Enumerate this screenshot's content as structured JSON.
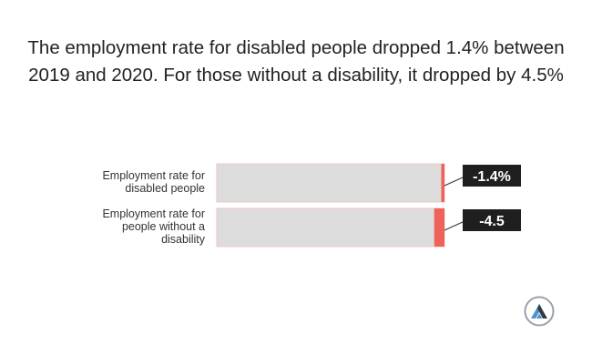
{
  "title": "The employment rate for disabled people dropped 1.4% between 2019 and 2020. For those without a disability, it dropped by 4.5%",
  "colors": {
    "track": "#dcdcdc",
    "track_border": "#f2c6c2",
    "bar": "#ef6259",
    "label_bg": "#1f1f1f",
    "label_text": "#ffffff",
    "logo_ring": "#9aa1aa",
    "logo_accent": "#4b90c8",
    "logo_dark": "#2f3a48"
  },
  "chart_data": {
    "type": "bar",
    "orientation": "horizontal",
    "categories": [
      "Employment rate for disabled people",
      "Employment rate for people without a disability"
    ],
    "category_label_lines": [
      [
        "Employment rate for",
        "disabled people"
      ],
      [
        "Employment rate for",
        "people without a",
        "disability"
      ]
    ],
    "values": [
      -1.4,
      -4.5
    ],
    "data_labels": [
      "-1.4%",
      "-4.5"
    ],
    "axis_range": [
      -100,
      0
    ],
    "title": "The employment rate for disabled people dropped 1.4% between 2019 and 2020. For those without a disability, it dropped by 4.5%",
    "xlabel": "",
    "ylabel": "",
    "grid": false,
    "legend": "none"
  }
}
